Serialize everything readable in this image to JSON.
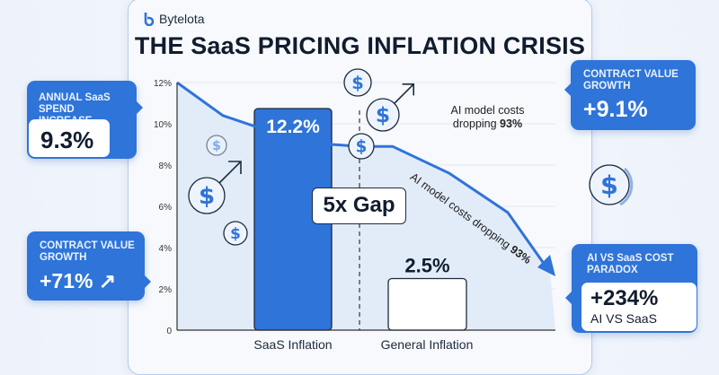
{
  "brand": {
    "name": "Bytelota",
    "color": "#2f74d8"
  },
  "title": "THE SaaS PRICING INFLATION CRISIS",
  "callouts": {
    "annual_spend": {
      "label": "ANNUAL SaaS SPEND INCREASE",
      "value": "9.3%"
    },
    "contract_left": {
      "label": "CONTRACT VALUE GROWTH",
      "value": "+71% ↗"
    },
    "contract_right": {
      "label": "CONTRACT VALUE GROWTH",
      "value": "+9.1%"
    },
    "paradox": {
      "label": "AI VS SaaS COST PARADOX",
      "value": "+234%",
      "sub": "AI VS SaaS"
    }
  },
  "annotations": {
    "gap": "5x Gap",
    "ai_note_line1": "AI model costs",
    "ai_note_line2": "dropping ",
    "ai_note_bold": "93%",
    "ai_rot": "AI model costs dropping ",
    "ai_rot_bold": "93%"
  },
  "chart_data": {
    "type": "bar",
    "categories": [
      "SaaS Inflation",
      "General Inflation"
    ],
    "values": [
      12.2,
      2.5
    ],
    "value_labels": [
      "12.2%",
      "2.5%"
    ],
    "ylim": [
      0,
      12
    ],
    "yticks": [
      "0",
      "2%",
      "4%",
      "6%",
      "8%",
      "10%",
      "12%"
    ],
    "grid": true,
    "colors": {
      "saas": "#2f74d8",
      "general": "#ffffff",
      "line": "#2f74d8",
      "area": "#dce8f8"
    },
    "trend_line": {
      "description_label": "AI model costs dropping 93%",
      "values": [
        12,
        10.4,
        9.9,
        9.0,
        8.9,
        8.9,
        7.6,
        5.7,
        2.8
      ]
    }
  },
  "icons": [
    "bytelota-logo-icon",
    "dollar-coin-icon",
    "dollar-up-arrow-icon",
    "dollar-cycle-icon",
    "arrow-up-right-icon"
  ]
}
